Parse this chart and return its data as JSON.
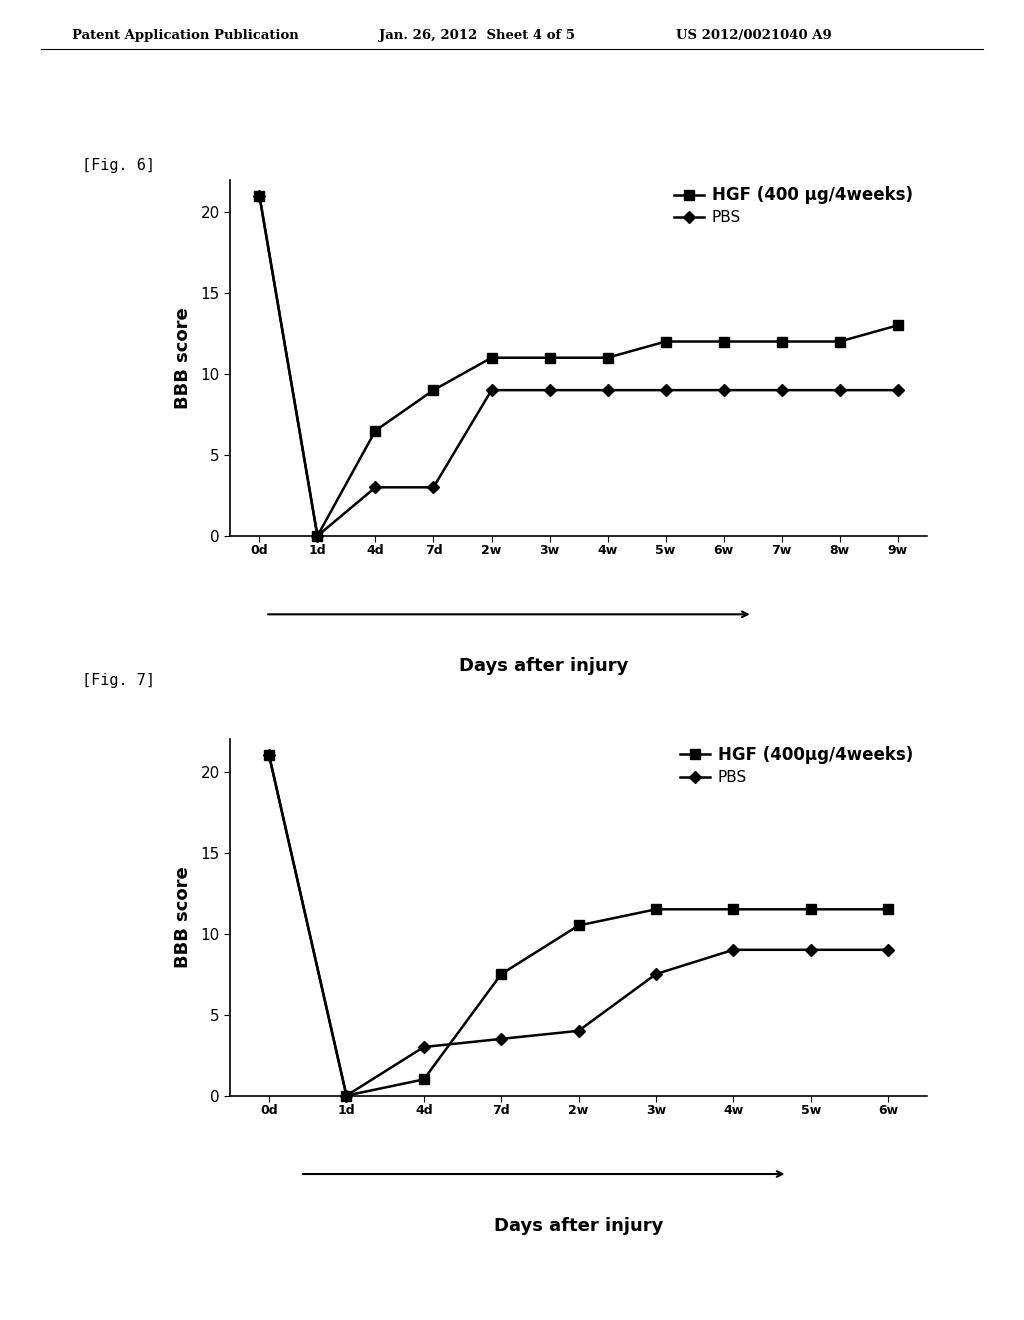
{
  "header_left": "Patent Application Publication",
  "header_mid": "Jan. 26, 2012  Sheet 4 of 5",
  "header_right": "US 2012/0021040 A9",
  "fig6_label": "[Fig. 6]",
  "fig7_label": "[Fig. 7]",
  "fig6": {
    "x_labels": [
      "0d",
      "1d",
      "4d",
      "7d",
      "2w",
      "3w",
      "4w",
      "5w",
      "6w",
      "7w",
      "8w",
      "9w"
    ],
    "hgf_values": [
      21,
      0,
      6.5,
      9,
      11,
      11,
      11,
      12,
      12,
      12,
      12,
      13
    ],
    "pbs_values": [
      21,
      0,
      3,
      3,
      9,
      9,
      9,
      9,
      9,
      9,
      9,
      9
    ],
    "ylabel": "BBB score",
    "xlabel": "Days after injury",
    "hgf_label": "HGF (400 μg/4weeks)",
    "pbs_label": "PBS",
    "ylim": [
      0,
      22
    ],
    "yticks": [
      0,
      5,
      10,
      15,
      20
    ]
  },
  "fig7": {
    "x_labels": [
      "0d",
      "1d",
      "4d",
      "7d",
      "2w",
      "3w",
      "4w",
      "5w",
      "6w"
    ],
    "hgf_values": [
      21,
      0,
      1,
      7.5,
      10.5,
      11.5,
      11.5,
      11.5,
      11.5
    ],
    "pbs_values": [
      21,
      0,
      3,
      3.5,
      4,
      7.5,
      9,
      9,
      9
    ],
    "ylabel": "BBB score",
    "xlabel": "Days after injury",
    "hgf_label": "HGF (400μg/4weeks)",
    "pbs_label": "PBS",
    "ylim": [
      0,
      22
    ],
    "yticks": [
      0,
      5,
      10,
      15,
      20
    ]
  },
  "background_color": "#ffffff",
  "line_color": "#000000"
}
